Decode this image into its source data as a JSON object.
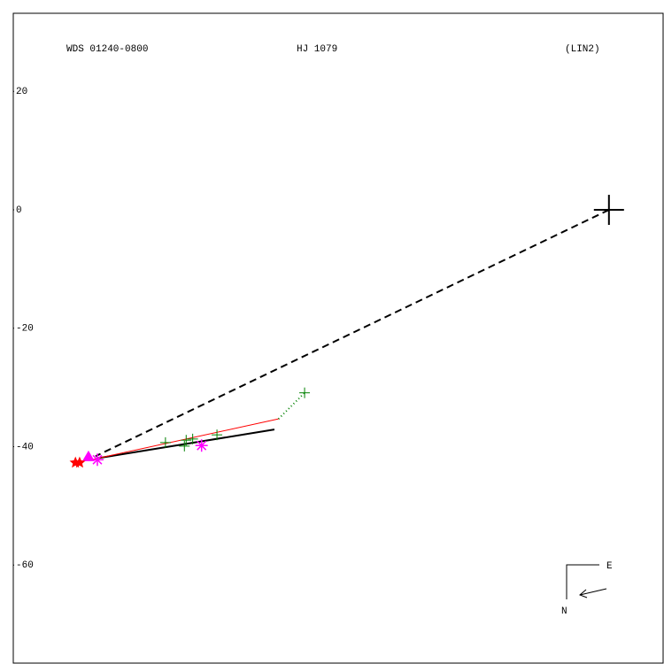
{
  "chart_data": {
    "type": "orbit",
    "title_left": "WDS 01240-0800",
    "title_center": "HJ 1079",
    "title_right": "(LIN2)",
    "compass_east": "E",
    "compass_north": "N",
    "xlim": [
      -100.6,
      9.3
    ],
    "ylim": [
      -76.7,
      33.2
    ],
    "yticks": [
      20,
      0,
      -20,
      -40,
      -60
    ],
    "series": [
      {
        "style": "dashed",
        "color": "#000000",
        "x": [
          0,
          -86.7
        ],
        "y": [
          0,
          -41.6
        ]
      },
      {
        "style": "solid",
        "width": 2,
        "color": "#000000",
        "x": [
          -86.7,
          -56.5
        ],
        "y": [
          -42.0,
          -37.1
        ]
      },
      {
        "style": "solid",
        "width": 1,
        "color": "#ff0000",
        "x": [
          -87.9,
          -55.8
        ],
        "y": [
          -42.3,
          -35.3
        ]
      },
      {
        "style": "dotted",
        "color": "#008000",
        "x": [
          -55.8,
          -51.4
        ],
        "y": [
          -35.3,
          -30.9
        ]
      },
      {
        "marker": "cross",
        "size": 17,
        "color": "#000000",
        "x": [
          0
        ],
        "y": [
          0
        ]
      },
      {
        "marker": "plus",
        "size": 6,
        "color": "#008000",
        "x": [
          -74.9,
          -71.4,
          -71.7,
          -70.3,
          -66.2,
          -51.4
        ],
        "y": [
          -39.3,
          -38.9,
          -39.9,
          -38.7,
          -38.0,
          -30.9
        ]
      },
      {
        "marker": "asterisk",
        "size": 7,
        "color": "#ff00ff",
        "x": [
          -68.8,
          -86.4
        ],
        "y": [
          -39.8,
          -42.2
        ]
      },
      {
        "marker": "triangle",
        "size": 7,
        "color": "#ff00ff",
        "x": [
          -87.9
        ],
        "y": [
          -41.7
        ]
      },
      {
        "marker": "star",
        "size": 7,
        "color": "#ff0000",
        "x": [
          -90.1,
          -89.4
        ],
        "y": [
          -42.7,
          -42.7
        ]
      }
    ]
  }
}
